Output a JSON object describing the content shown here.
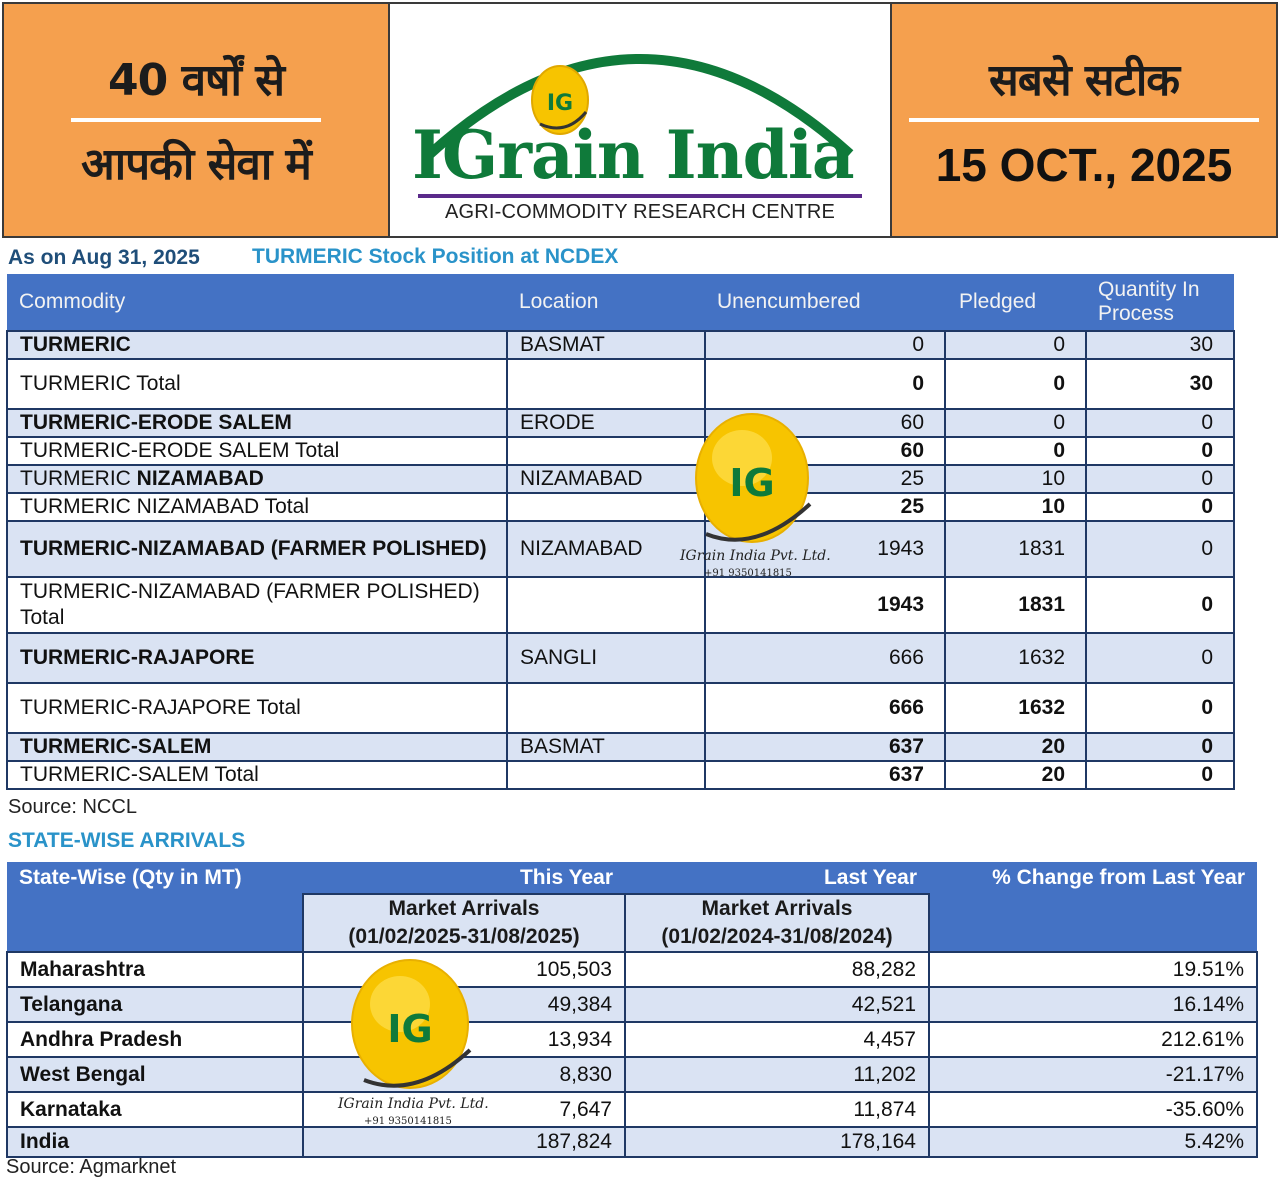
{
  "header": {
    "left_line1": "40 वर्षों से",
    "left_line2": "आपकी सेवा में",
    "brand_name": "IGrain India",
    "brand_subtitle": "AGRI-COMMODITY RESEARCH CENTRE",
    "logo_badge": "IG",
    "right_line1": "सबसे सटीक",
    "right_date": "15 OCT., 2025"
  },
  "stock": {
    "as_on": "As on Aug 31, 2025",
    "title": "TURMERIC Stock Position at NCDEX",
    "columns": [
      "Commodity",
      "Location",
      "Unencumbered",
      "Pledged",
      "Quantity In Process"
    ],
    "rows": [
      {
        "commodity": "TURMERIC",
        "location": "BASMAT",
        "unencumbered": "0",
        "pledged": "0",
        "in_process": "30"
      },
      {
        "commodity": "TURMERIC Total",
        "location": "",
        "unencumbered": "0",
        "pledged": "0",
        "in_process": "30"
      },
      {
        "commodity": "TURMERIC-ERODE SALEM",
        "location": "ERODE",
        "unencumbered": "60",
        "pledged": "0",
        "in_process": "0"
      },
      {
        "commodity": "TURMERIC-ERODE SALEM Total",
        "location": "",
        "unencumbered": "60",
        "pledged": "0",
        "in_process": "0"
      },
      {
        "commodity_prefix": "TURMERIC ",
        "commodity_bold": "NIZAMABAD",
        "location": "NIZAMABAD",
        "unencumbered": "25",
        "pledged": "10",
        "in_process": "0"
      },
      {
        "commodity": "TURMERIC NIZAMABAD Total",
        "location": "",
        "unencumbered": "25",
        "pledged": "10",
        "in_process": "0"
      },
      {
        "commodity": "TURMERIC-NIZAMABAD (FARMER POLISHED)",
        "location": "NIZAMABAD",
        "unencumbered": "1943",
        "pledged": "1831",
        "in_process": "0"
      },
      {
        "commodity": "TURMERIC-NIZAMABAD (FARMER POLISHED) Total",
        "location": "",
        "unencumbered": "1943",
        "pledged": "1831",
        "in_process": "0"
      },
      {
        "commodity": "TURMERIC-RAJAPORE",
        "location": "SANGLI",
        "unencumbered": "666",
        "pledged": "1632",
        "in_process": "0"
      },
      {
        "commodity": "TURMERIC-RAJAPORE Total",
        "location": "",
        "unencumbered": "666",
        "pledged": "1632",
        "in_process": "0"
      },
      {
        "commodity": "TURMERIC-SALEM",
        "location": "BASMAT",
        "unencumbered": "637",
        "pledged": "20",
        "in_process": "0"
      },
      {
        "commodity": "TURMERIC-SALEM Total",
        "location": "",
        "unencumbered": "637",
        "pledged": "20",
        "in_process": "0"
      }
    ],
    "source": "Source: NCCL"
  },
  "arrivals": {
    "title": "STATE-WISE ARRIVALS",
    "head_state": "State-Wise (Qty in MT)",
    "head_this_year": "This Year",
    "head_last_year": "Last Year",
    "head_change": "% Change from Last Year",
    "sub_this_line1": "Market Arrivals",
    "sub_this_line2": "(01/02/2025-31/08/2025)",
    "sub_last_line1": "Market Arrivals",
    "sub_last_line2": "(01/02/2024-31/08/2024)",
    "rows": [
      {
        "state": "Maharashtra",
        "this_year": "105,503",
        "last_year": "88,282",
        "change": "19.51%"
      },
      {
        "state": "Telangana",
        "this_year": "49,384",
        "last_year": "42,521",
        "change": "16.14%"
      },
      {
        "state": "Andhra Pradesh",
        "this_year": "13,934",
        "last_year": "4,457",
        "change": "212.61%"
      },
      {
        "state": "West Bengal",
        "this_year": "8,830",
        "last_year": "11,202",
        "change": "-21.17%"
      },
      {
        "state": "Karnataka",
        "this_year": "7,647",
        "last_year": "11,874",
        "change": "-35.60%"
      },
      {
        "state": "India",
        "this_year": "187,824",
        "last_year": "178,164",
        "change": "5.42%"
      }
    ],
    "source": "Source: Agmarknet"
  },
  "watermark": {
    "badge": "IG",
    "company": "IGrain India Pvt. Ltd.",
    "phone": "+91 9350141815"
  },
  "colors": {
    "header_orange": "#f5a04e",
    "brand_green": "#0f7a3a",
    "table_header_blue": "#4472c4",
    "row_shade": "#dae3f3",
    "title_blue": "#2a93c9"
  }
}
